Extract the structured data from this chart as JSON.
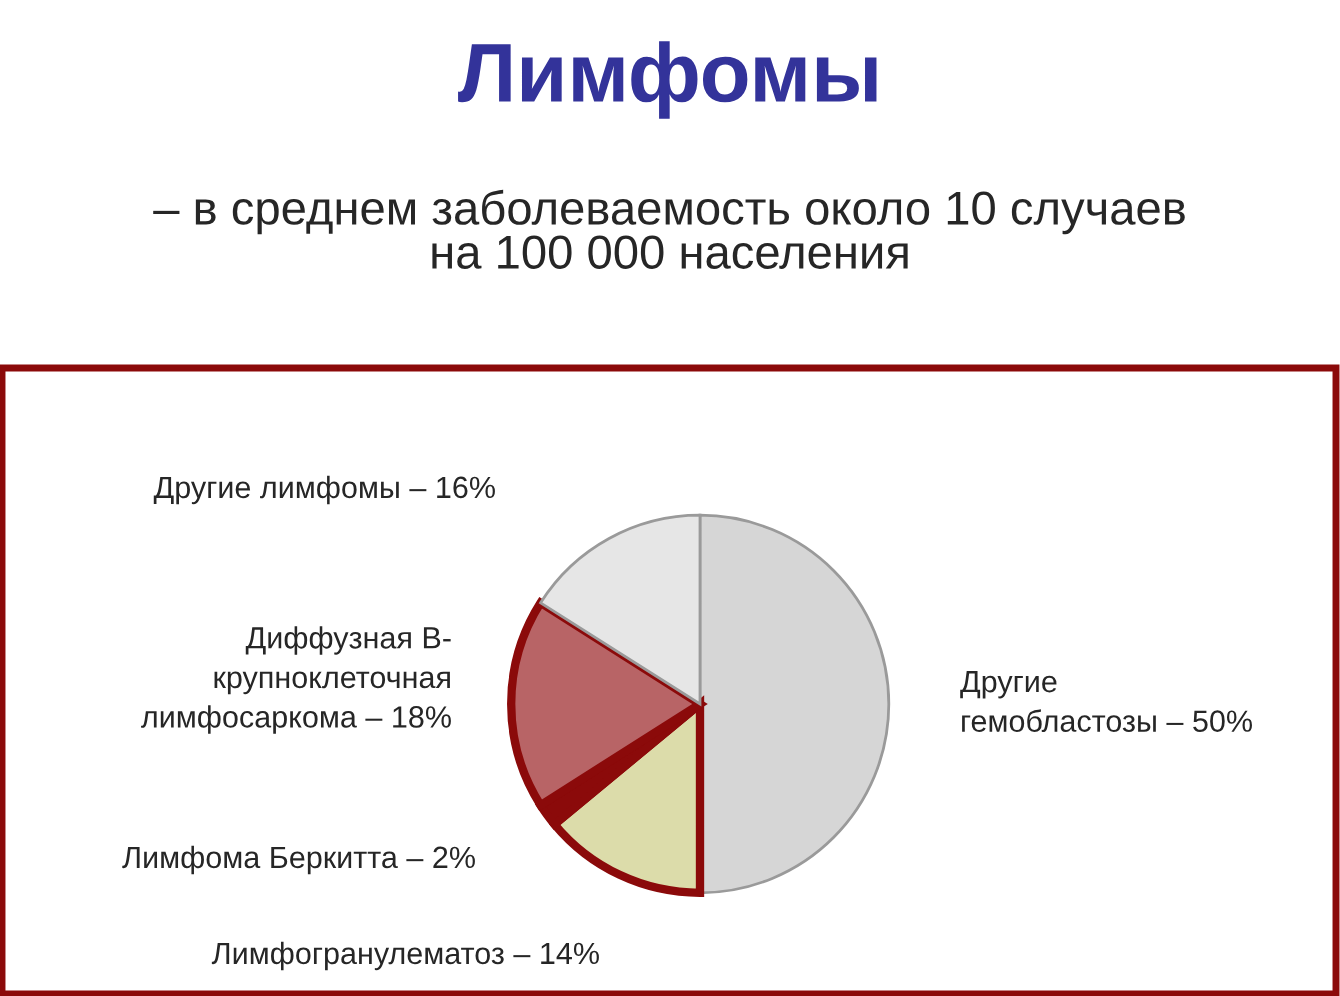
{
  "chart_data": {
    "type": "pie",
    "title": "Лимфомы",
    "subtitle": "– в среднем заболеваемость около 10 случаев\nна 100 000 населения",
    "categories": [
      "Другие\nгемобластозы –",
      "Лимфогранулематоз –",
      "Лимфома Беркитта –",
      "Диффузная В-\nкрупноклеточная\nлимфосаркома –",
      "Другие лимфомы –"
    ],
    "values": [
      50,
      14,
      2,
      18,
      16
    ],
    "value_labels": [
      "50%",
      "14%",
      "2%",
      "18%",
      "16%"
    ],
    "colors": [
      "#d6d6d6",
      "#dcdcaa",
      "#8b0a0a",
      "#b86466",
      "#e6e6e6"
    ]
  }
}
